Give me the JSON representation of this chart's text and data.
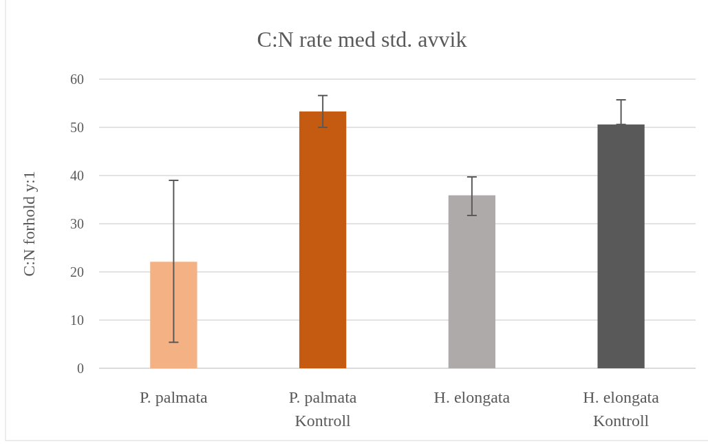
{
  "chart_data": {
    "type": "bar",
    "title": "C:N rate med std. avvik",
    "ylabel": "C:N forhold y:1",
    "categories": [
      "P. palmata",
      "P. palmata Kontroll",
      "H. elongata",
      "H. elongata Kontroll"
    ],
    "values": [
      22.1,
      53.3,
      35.9,
      50.6
    ],
    "colors": [
      "#f4b183",
      "#c55a11",
      "#aeaaaa",
      "#595959"
    ],
    "errors": [
      [
        5.4,
        39.0
      ],
      [
        50.0,
        56.6
      ],
      [
        31.7,
        39.7
      ],
      [
        50.6,
        55.7
      ]
    ],
    "ylim": [
      0,
      60
    ],
    "yticks": [
      0,
      10,
      20,
      30,
      40,
      50,
      60
    ],
    "grid": "y"
  }
}
